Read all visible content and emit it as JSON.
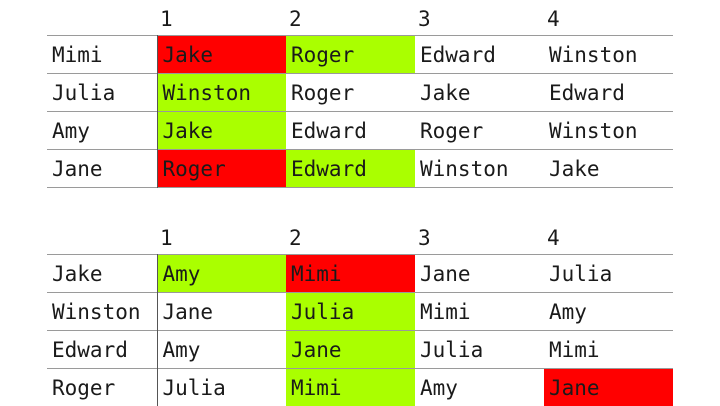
{
  "colors": {
    "accept": "#aaff00",
    "reject": "#ff0000"
  },
  "tables": [
    {
      "id": "women",
      "header": [
        "",
        "1",
        "2",
        "3",
        "4"
      ],
      "rows": [
        {
          "name": "Mimi",
          "prefs": [
            "Jake",
            "Roger",
            "Edward",
            "Winston"
          ],
          "status": [
            "reject",
            "accept",
            "",
            ""
          ]
        },
        {
          "name": "Julia",
          "prefs": [
            "Winston",
            "Roger",
            "Jake",
            "Edward"
          ],
          "status": [
            "accept",
            "",
            "",
            ""
          ]
        },
        {
          "name": "Amy",
          "prefs": [
            "Jake",
            "Edward",
            "Roger",
            "Winston"
          ],
          "status": [
            "accept",
            "",
            "",
            ""
          ]
        },
        {
          "name": "Jane",
          "prefs": [
            "Roger",
            "Edward",
            "Winston",
            "Jake"
          ],
          "status": [
            "reject",
            "accept",
            "",
            ""
          ]
        }
      ]
    },
    {
      "id": "men",
      "header": [
        "",
        "1",
        "2",
        "3",
        "4"
      ],
      "rows": [
        {
          "name": "Jake",
          "prefs": [
            "Amy",
            "Mimi",
            "Jane",
            "Julia"
          ],
          "status": [
            "accept",
            "reject",
            "",
            ""
          ]
        },
        {
          "name": "Winston",
          "prefs": [
            "Jane",
            "Julia",
            "Mimi",
            "Amy"
          ],
          "status": [
            "",
            "accept",
            "",
            ""
          ]
        },
        {
          "name": "Edward",
          "prefs": [
            "Amy",
            "Jane",
            "Julia",
            "Mimi"
          ],
          "status": [
            "",
            "accept",
            "",
            ""
          ]
        },
        {
          "name": "Roger",
          "prefs": [
            "Julia",
            "Mimi",
            "Amy",
            "Jane"
          ],
          "status": [
            "",
            "accept",
            "",
            "reject"
          ]
        }
      ]
    }
  ]
}
